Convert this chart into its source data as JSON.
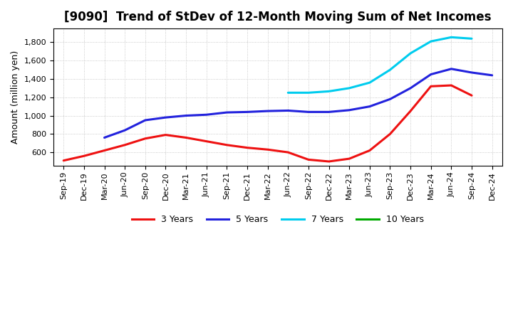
{
  "title": "[9090]  Trend of StDev of 12-Month Moving Sum of Net Incomes",
  "ylabel": "Amount (million yen)",
  "background_color": "#ffffff",
  "plot_bg_color": "#ffffff",
  "grid_color": "#bbbbbb",
  "ylim": [
    450,
    1950
  ],
  "yticks": [
    600,
    800,
    1000,
    1200,
    1400,
    1600,
    1800
  ],
  "x_labels": [
    "Sep-19",
    "Dec-19",
    "Mar-20",
    "Jun-20",
    "Sep-20",
    "Dec-20",
    "Mar-21",
    "Jun-21",
    "Sep-21",
    "Dec-21",
    "Mar-22",
    "Jun-22",
    "Sep-22",
    "Dec-22",
    "Mar-23",
    "Jun-23",
    "Sep-23",
    "Dec-23",
    "Mar-24",
    "Jun-24",
    "Sep-24",
    "Dec-24"
  ],
  "series": {
    "3 Years": {
      "color": "#ee1111",
      "values": [
        510,
        560,
        620,
        680,
        750,
        790,
        760,
        720,
        680,
        650,
        630,
        600,
        520,
        500,
        530,
        620,
        800,
        1050,
        1320,
        1330,
        1220,
        null
      ]
    },
    "5 Years": {
      "color": "#2222dd",
      "values": [
        null,
        null,
        760,
        840,
        950,
        980,
        1000,
        1010,
        1035,
        1040,
        1050,
        1055,
        1040,
        1040,
        1060,
        1100,
        1180,
        1300,
        1450,
        1510,
        1470,
        1440
      ]
    },
    "7 Years": {
      "color": "#00ccee",
      "values": [
        null,
        null,
        null,
        null,
        null,
        null,
        null,
        null,
        null,
        null,
        null,
        1250,
        1250,
        1265,
        1300,
        1360,
        1500,
        1680,
        1810,
        1855,
        1840,
        null
      ]
    },
    "10 Years": {
      "color": "#00aa00",
      "values": [
        null,
        null,
        null,
        null,
        null,
        null,
        null,
        null,
        null,
        null,
        null,
        null,
        null,
        null,
        null,
        null,
        null,
        null,
        null,
        null,
        null,
        null
      ]
    }
  },
  "legend_order": [
    "3 Years",
    "5 Years",
    "7 Years",
    "10 Years"
  ],
  "title_fontsize": 12,
  "axis_fontsize": 9,
  "tick_fontsize": 8,
  "legend_fontsize": 9,
  "line_width": 2.2
}
